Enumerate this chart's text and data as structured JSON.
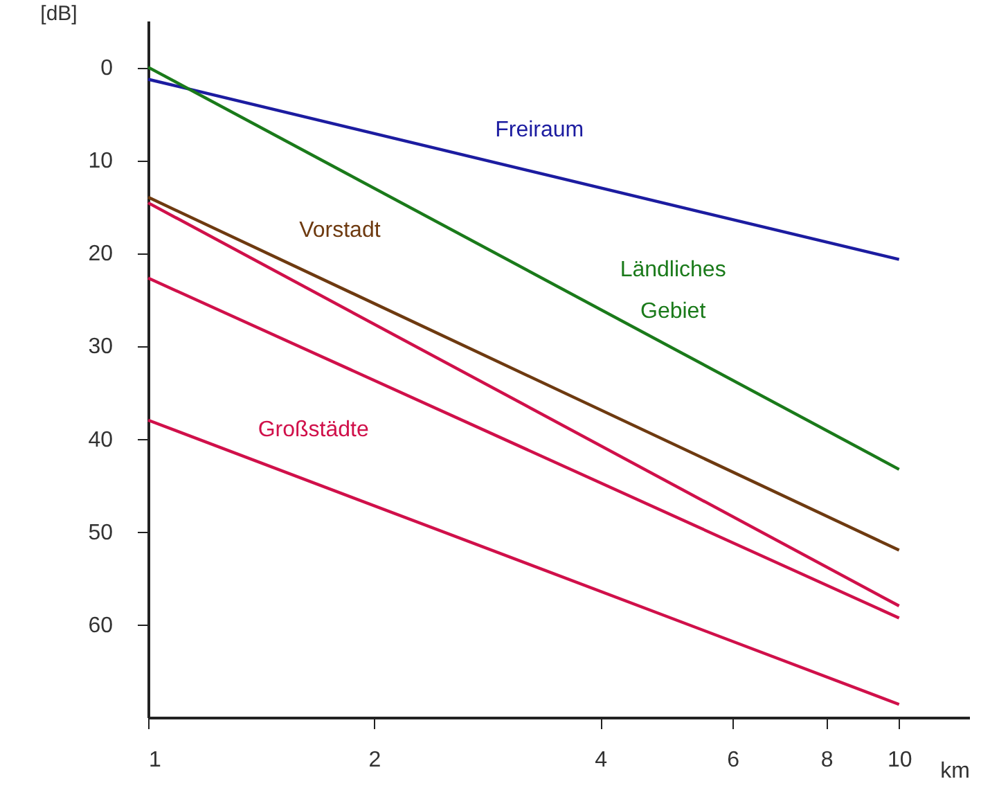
{
  "chart_data": {
    "type": "line",
    "xlabel": "km",
    "ylabel": "[dB]",
    "log": "x",
    "x": [
      1,
      10
    ],
    "series": [
      {
        "name": "Freiraum",
        "color": "#1c1ca0",
        "values": [
          1.3,
          20.7
        ]
      },
      {
        "name": "Ländliches Gebiet",
        "color": "#1a7a1a",
        "values": [
          0,
          43.3
        ]
      },
      {
        "name": "Vorstadt",
        "color": "#6e3a10",
        "values": [
          14,
          52
        ]
      },
      {
        "name": "Großstädte",
        "color": "#d0104a",
        "values": [
          14.6,
          58
        ]
      },
      {
        "color": "#d0104a",
        "values": [
          22.7,
          59.3
        ]
      },
      {
        "color": "#d0104a",
        "values": [
          38,
          68.6
        ]
      }
    ],
    "xlim": [
      1,
      12.4
    ],
    "xticks": [
      1,
      2,
      4,
      6,
      8,
      10
    ],
    "ylim": [
      70,
      -5
    ],
    "yticks": [
      0,
      10,
      20,
      30,
      40,
      50,
      60
    ],
    "grid": false,
    "marker": "none",
    "line_style": "solid"
  }
}
